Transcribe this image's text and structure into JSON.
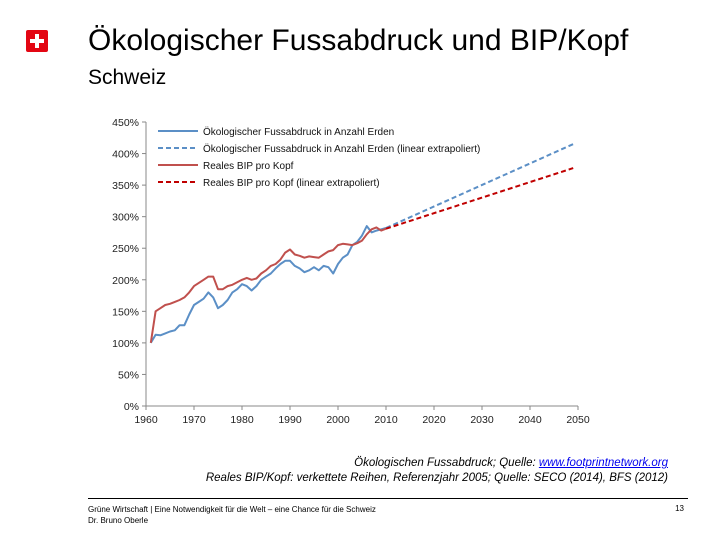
{
  "header": {
    "title": "Ökologischer Fussabdruck und BIP/Kopf",
    "subtitle": "Schweiz"
  },
  "logo": {
    "icon": "swiss-cross-icon",
    "color": "#e30613"
  },
  "source": {
    "line1_prefix": "Ökologischen Fussabdruck; Quelle: ",
    "line1_link": "www.footprintnetwork.org",
    "line2": "Reales BIP/Kopf: verkettete Reihen, Referenzjahr 2005; Quelle: SECO (2014), BFS (2012)"
  },
  "footer": {
    "line1": "Grüne Wirtschaft | Eine Notwendigkeit für die Welt – eine Chance für die Schweiz",
    "line2": "Dr. Bruno Oberle",
    "page": "13"
  },
  "chart_data": {
    "type": "line",
    "xlim": [
      1960,
      2050
    ],
    "ylim": [
      0,
      450
    ],
    "x_ticks": [
      1960,
      1970,
      1980,
      1990,
      2000,
      2010,
      2020,
      2030,
      2040,
      2050
    ],
    "y_ticks": [
      0,
      50,
      100,
      150,
      200,
      250,
      300,
      350,
      400,
      450
    ],
    "y_tick_labels": [
      "0%",
      "50%",
      "100%",
      "150%",
      "200%",
      "250%",
      "300%",
      "350%",
      "400%",
      "450%"
    ],
    "grid": false,
    "legend": "top-left",
    "series": [
      {
        "name": "Ökologischer Fussabdruck in Anzahl Erden",
        "color": "#5b8fc6",
        "dash": false,
        "points": [
          [
            1961,
            100
          ],
          [
            1962,
            113
          ],
          [
            1963,
            112
          ],
          [
            1964,
            115
          ],
          [
            1965,
            118
          ],
          [
            1966,
            120
          ],
          [
            1967,
            128
          ],
          [
            1968,
            128
          ],
          [
            1969,
            145
          ],
          [
            1970,
            160
          ],
          [
            1971,
            165
          ],
          [
            1972,
            170
          ],
          [
            1973,
            180
          ],
          [
            1974,
            172
          ],
          [
            1975,
            155
          ],
          [
            1976,
            160
          ],
          [
            1977,
            168
          ],
          [
            1978,
            180
          ],
          [
            1979,
            185
          ],
          [
            1980,
            193
          ],
          [
            1981,
            190
          ],
          [
            1982,
            183
          ],
          [
            1983,
            190
          ],
          [
            1984,
            200
          ],
          [
            1985,
            205
          ],
          [
            1986,
            210
          ],
          [
            1987,
            218
          ],
          [
            1988,
            225
          ],
          [
            1989,
            230
          ],
          [
            1990,
            230
          ],
          [
            1991,
            222
          ],
          [
            1992,
            218
          ],
          [
            1993,
            212
          ],
          [
            1994,
            215
          ],
          [
            1995,
            220
          ],
          [
            1996,
            215
          ],
          [
            1997,
            222
          ],
          [
            1998,
            220
          ],
          [
            1999,
            210
          ],
          [
            2000,
            225
          ],
          [
            2001,
            235
          ],
          [
            2002,
            240
          ],
          [
            2003,
            255
          ],
          [
            2004,
            260
          ],
          [
            2005,
            270
          ],
          [
            2006,
            285
          ],
          [
            2007,
            275
          ],
          [
            2008,
            278
          ],
          [
            2009,
            280
          ],
          [
            2010,
            282
          ]
        ]
      },
      {
        "name": "Ökologischer Fussabdruck in Anzahl Erden (linear extrapoliert)",
        "color": "#5b8fc6",
        "dash": true,
        "points": [
          [
            2010,
            282
          ],
          [
            2049,
            415
          ]
        ]
      },
      {
        "name": "Reales BIP pro Kopf",
        "color": "#c0504d",
        "dash": false,
        "points": [
          [
            1961,
            100
          ],
          [
            1962,
            150
          ],
          [
            1963,
            155
          ],
          [
            1964,
            160
          ],
          [
            1965,
            162
          ],
          [
            1966,
            165
          ],
          [
            1967,
            168
          ],
          [
            1968,
            172
          ],
          [
            1969,
            180
          ],
          [
            1970,
            190
          ],
          [
            1971,
            195
          ],
          [
            1972,
            200
          ],
          [
            1973,
            205
          ],
          [
            1974,
            205
          ],
          [
            1975,
            185
          ],
          [
            1976,
            185
          ],
          [
            1977,
            190
          ],
          [
            1978,
            192
          ],
          [
            1979,
            196
          ],
          [
            1980,
            200
          ],
          [
            1981,
            203
          ],
          [
            1982,
            200
          ],
          [
            1983,
            202
          ],
          [
            1984,
            210
          ],
          [
            1985,
            215
          ],
          [
            1986,
            222
          ],
          [
            1987,
            225
          ],
          [
            1988,
            232
          ],
          [
            1989,
            243
          ],
          [
            1990,
            248
          ],
          [
            1991,
            240
          ],
          [
            1992,
            238
          ],
          [
            1993,
            235
          ],
          [
            1994,
            237
          ],
          [
            1995,
            236
          ],
          [
            1996,
            235
          ],
          [
            1997,
            240
          ],
          [
            1998,
            245
          ],
          [
            1999,
            247
          ],
          [
            2000,
            255
          ],
          [
            2001,
            257
          ],
          [
            2002,
            256
          ],
          [
            2003,
            255
          ],
          [
            2004,
            258
          ],
          [
            2005,
            262
          ],
          [
            2006,
            272
          ],
          [
            2007,
            280
          ],
          [
            2008,
            283
          ],
          [
            2009,
            278
          ],
          [
            2010,
            281
          ]
        ]
      },
      {
        "name": "Reales BIP pro Kopf (linear extrapoliert)",
        "color": "#c00000",
        "dash": true,
        "points": [
          [
            2010,
            281
          ],
          [
            2049,
            377
          ]
        ]
      }
    ]
  }
}
